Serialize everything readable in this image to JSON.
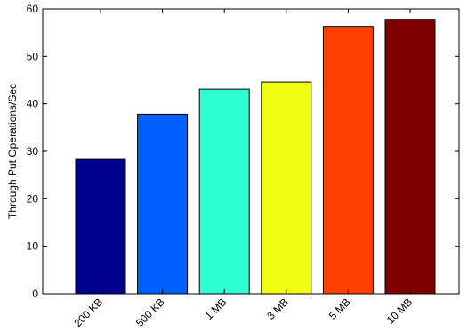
{
  "chart_data": {
    "type": "bar",
    "title": "",
    "xlabel": "",
    "ylabel": "Through Put Operations/Sec",
    "categories": [
      "200 KB",
      "500 KB",
      "1 MB",
      "3 MB",
      "5 MB",
      "10 MB"
    ],
    "values": [
      28.3,
      37.8,
      43.1,
      44.6,
      56.3,
      57.8
    ],
    "ylim": [
      0,
      60
    ],
    "yticks": [
      0,
      10,
      20,
      30,
      40,
      50,
      60
    ],
    "grid": false,
    "colors": [
      "#00008f",
      "#0060ff",
      "#2effcf",
      "#efff10",
      "#ff4000",
      "#800000"
    ],
    "tick_label_rotation": "45-degrees"
  }
}
